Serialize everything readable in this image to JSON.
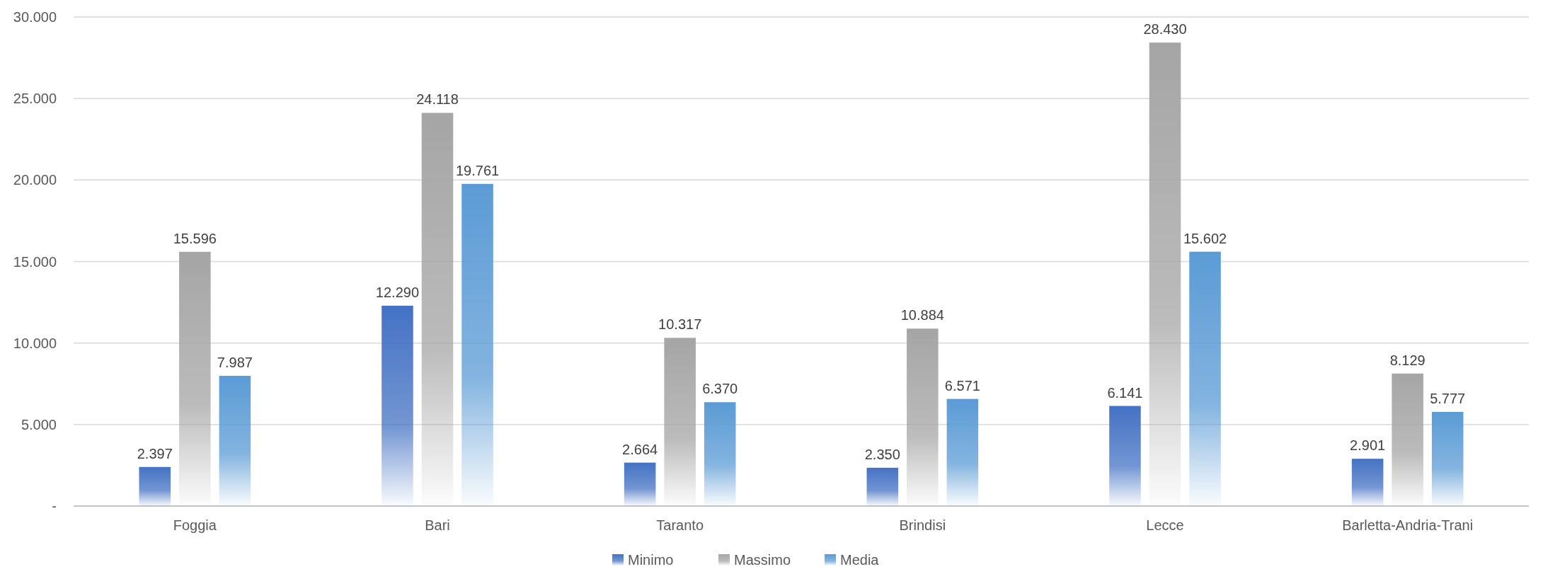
{
  "chart_data": {
    "type": "bar",
    "categories": [
      "Foggia",
      "Bari",
      "Taranto",
      "Brindisi",
      "Lecce",
      "Barletta-Andria-Trani"
    ],
    "series": [
      {
        "name": "Minimo",
        "color": "#4472c4",
        "values": [
          2397,
          12290,
          2664,
          2350,
          6141,
          2901
        ],
        "value_labels": [
          "2.397",
          "12.290",
          "2.664",
          "2.350",
          "6.141",
          "2.901"
        ]
      },
      {
        "name": "Massimo",
        "color": "#a5a5a5",
        "values": [
          15596,
          24118,
          10317,
          10884,
          28430,
          8129
        ],
        "value_labels": [
          "15.596",
          "24.118",
          "10.317",
          "10.884",
          "28.430",
          "8.129"
        ]
      },
      {
        "name": "Media",
        "color": "#5b9bd5",
        "values": [
          7987,
          19761,
          6370,
          6571,
          15602,
          5777
        ],
        "value_labels": [
          "7.987",
          "19.761",
          "6.370",
          "6.571",
          "15.602",
          "5.777"
        ]
      }
    ],
    "ylim": [
      0,
      30000
    ],
    "yticks": [
      {
        "value": 0,
        "label": "-"
      },
      {
        "value": 5000,
        "label": "5.000"
      },
      {
        "value": 10000,
        "label": "10.000"
      },
      {
        "value": 15000,
        "label": "15.000"
      },
      {
        "value": 20000,
        "label": "20.000"
      },
      {
        "value": 25000,
        "label": "25.000"
      },
      {
        "value": 30000,
        "label": "30.000"
      }
    ],
    "grid": "y",
    "legend": "bottom"
  }
}
